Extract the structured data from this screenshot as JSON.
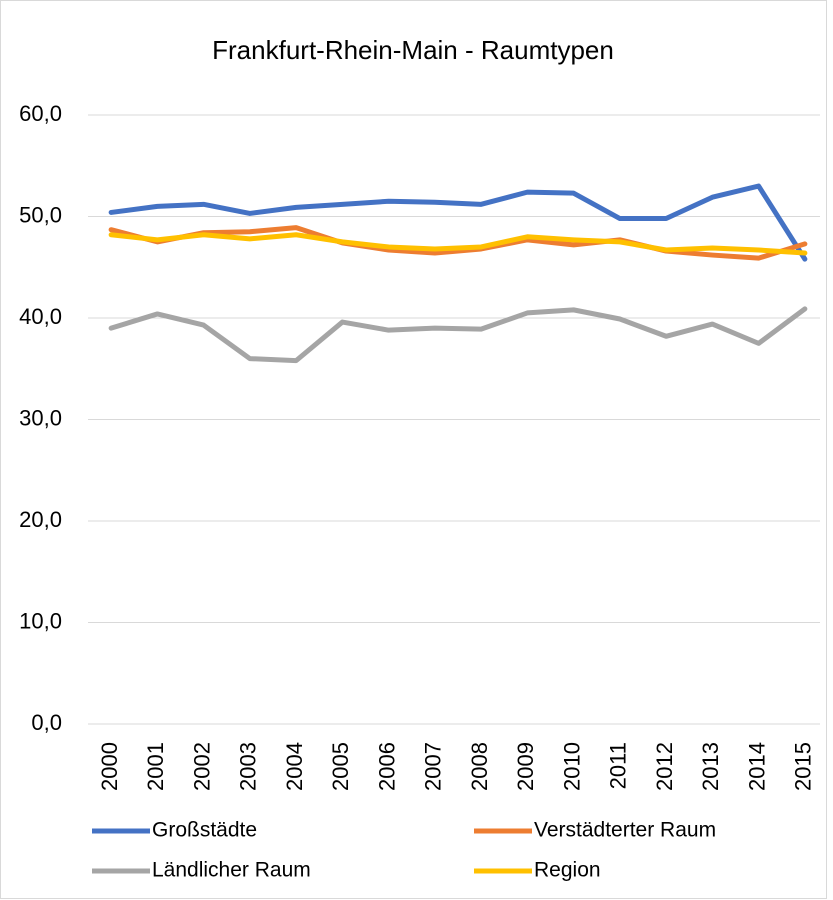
{
  "chart_data": {
    "type": "line",
    "title": "Frankfurt-Rhein-Main - Raumtypen",
    "categories": [
      "2000",
      "2001",
      "2002",
      "2003",
      "2004",
      "2005",
      "2006",
      "2007",
      "2008",
      "2009",
      "2010",
      "2011",
      "2012",
      "2013",
      "2014",
      "2015"
    ],
    "series": [
      {
        "name": "Großstädte",
        "color": "#4472c4",
        "values": [
          50.4,
          51.0,
          51.2,
          50.3,
          50.9,
          51.2,
          51.5,
          51.4,
          51.2,
          52.4,
          52.3,
          49.8,
          49.8,
          51.9,
          53.0,
          45.8
        ]
      },
      {
        "name": "Verstädterter Raum",
        "color": "#ed7d31",
        "values": [
          48.7,
          47.5,
          48.4,
          48.5,
          48.9,
          47.4,
          46.7,
          46.4,
          46.8,
          47.7,
          47.2,
          47.7,
          46.6,
          46.2,
          45.9,
          47.3
        ]
      },
      {
        "name": "Ländlicher Raum",
        "color": "#a5a5a5",
        "values": [
          39.0,
          40.4,
          39.3,
          36.0,
          35.8,
          39.6,
          38.8,
          39.0,
          38.9,
          40.5,
          40.8,
          39.9,
          38.2,
          39.4,
          37.5,
          40.9
        ]
      },
      {
        "name": "Region",
        "color": "#ffc000",
        "values": [
          48.2,
          47.7,
          48.2,
          47.8,
          48.2,
          47.5,
          47.0,
          46.8,
          47.0,
          48.0,
          47.7,
          47.5,
          46.7,
          46.9,
          46.7,
          46.4
        ]
      }
    ],
    "ylim": [
      0,
      60
    ],
    "yticks": [
      {
        "value": 0,
        "label": "0,0"
      },
      {
        "value": 10,
        "label": "10,0"
      },
      {
        "value": 20,
        "label": "20,0"
      },
      {
        "value": 30,
        "label": "30,0"
      },
      {
        "value": 40,
        "label": "40,0"
      },
      {
        "value": 50,
        "label": "50,0"
      },
      {
        "value": 60,
        "label": "60,0"
      }
    ],
    "grid": true
  }
}
